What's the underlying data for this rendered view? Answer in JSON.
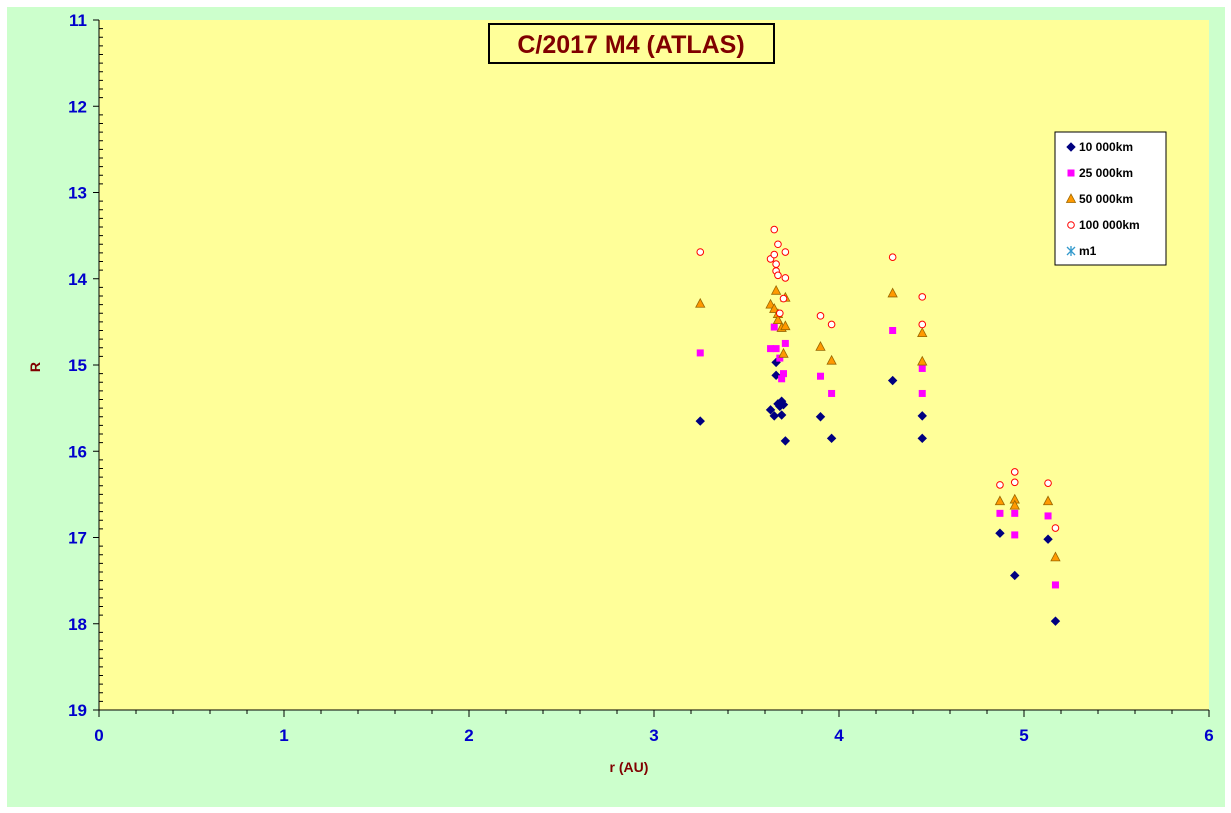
{
  "chart_data": {
    "type": "scatter",
    "title": "C/2017 M4 (ATLAS)",
    "xlabel": "r (AU)",
    "ylabel": "R",
    "xlim": [
      0,
      6
    ],
    "ylim": [
      11,
      19
    ],
    "y_reversed": true,
    "x_ticks": [
      "0",
      "1",
      "2",
      "3",
      "4",
      "5",
      "6"
    ],
    "y_ticks": [
      "11",
      "12",
      "13",
      "14",
      "15",
      "16",
      "17",
      "18",
      "19"
    ],
    "plot_background": "#ffff99",
    "chart_background": "#ccffcc",
    "legend_position": "right",
    "grid": false,
    "series": [
      {
        "name": "10 000km",
        "marker": "diamond",
        "color": "#000080",
        "points": [
          [
            3.25,
            15.65
          ],
          [
            3.63,
            15.52
          ],
          [
            3.65,
            15.59
          ],
          [
            3.66,
            15.12
          ],
          [
            3.66,
            14.97
          ],
          [
            3.67,
            15.45
          ],
          [
            3.68,
            15.48
          ],
          [
            3.69,
            15.42
          ],
          [
            3.69,
            15.58
          ],
          [
            3.7,
            15.46
          ],
          [
            3.71,
            15.88
          ],
          [
            3.9,
            15.6
          ],
          [
            3.96,
            15.85
          ],
          [
            4.29,
            15.18
          ],
          [
            4.45,
            15.59
          ],
          [
            4.45,
            15.85
          ],
          [
            4.87,
            16.95
          ],
          [
            4.95,
            17.44
          ],
          [
            5.13,
            17.02
          ],
          [
            5.17,
            17.97
          ]
        ]
      },
      {
        "name": "25 000km",
        "marker": "square",
        "color": "#ff00ff",
        "points": [
          [
            3.25,
            14.86
          ],
          [
            3.63,
            14.81
          ],
          [
            3.65,
            14.56
          ],
          [
            3.66,
            14.81
          ],
          [
            3.68,
            14.92
          ],
          [
            3.69,
            15.16
          ],
          [
            3.7,
            15.1
          ],
          [
            3.71,
            14.75
          ],
          [
            3.9,
            15.13
          ],
          [
            3.96,
            15.33
          ],
          [
            4.29,
            14.6
          ],
          [
            4.45,
            15.04
          ],
          [
            4.45,
            15.33
          ],
          [
            4.87,
            16.72
          ],
          [
            4.95,
            16.72
          ],
          [
            4.95,
            16.97
          ],
          [
            5.13,
            16.75
          ],
          [
            5.17,
            17.55
          ]
        ]
      },
      {
        "name": "50 000km",
        "marker": "triangle",
        "color": "#ff9900",
        "points": [
          [
            3.25,
            14.29
          ],
          [
            3.63,
            14.3
          ],
          [
            3.65,
            14.35
          ],
          [
            3.66,
            14.14
          ],
          [
            3.67,
            14.41
          ],
          [
            3.67,
            14.48
          ],
          [
            3.69,
            14.57
          ],
          [
            3.7,
            14.87
          ],
          [
            3.71,
            14.22
          ],
          [
            3.71,
            14.55
          ],
          [
            3.9,
            14.79
          ],
          [
            3.96,
            14.95
          ],
          [
            4.29,
            14.17
          ],
          [
            4.45,
            14.63
          ],
          [
            4.45,
            14.96
          ],
          [
            4.87,
            16.58
          ],
          [
            4.95,
            16.56
          ],
          [
            4.95,
            16.63
          ],
          [
            5.13,
            16.58
          ],
          [
            5.17,
            17.23
          ]
        ]
      },
      {
        "name": "100 000km",
        "marker": "circle",
        "color": "#ff0000",
        "points": [
          [
            3.25,
            13.69
          ],
          [
            3.63,
            13.77
          ],
          [
            3.65,
            13.43
          ],
          [
            3.65,
            13.72
          ],
          [
            3.66,
            13.83
          ],
          [
            3.66,
            13.91
          ],
          [
            3.67,
            13.6
          ],
          [
            3.67,
            13.96
          ],
          [
            3.68,
            14.4
          ],
          [
            3.7,
            14.23
          ],
          [
            3.71,
            13.69
          ],
          [
            3.71,
            13.99
          ],
          [
            3.9,
            14.43
          ],
          [
            3.96,
            14.53
          ],
          [
            4.29,
            13.75
          ],
          [
            4.45,
            14.21
          ],
          [
            4.45,
            14.53
          ],
          [
            4.87,
            16.39
          ],
          [
            4.95,
            16.24
          ],
          [
            4.95,
            16.36
          ],
          [
            5.13,
            16.37
          ],
          [
            5.17,
            16.89
          ]
        ]
      },
      {
        "name": "m1",
        "marker": "star",
        "color": "#3399cc",
        "points": []
      }
    ]
  }
}
